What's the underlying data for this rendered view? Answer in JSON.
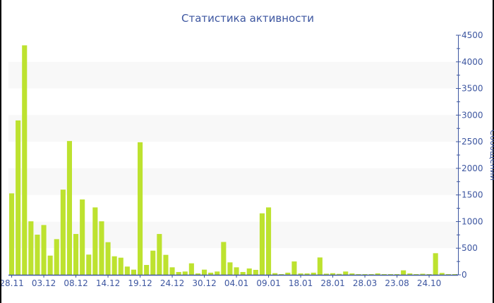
{
  "chart_data": {
    "type": "bar",
    "title": "Статистика активности",
    "ylabel": "Сообщений",
    "xlabel": "",
    "ylim": [
      0,
      4500
    ],
    "y_ticks": [
      0,
      500,
      1000,
      1500,
      2000,
      2500,
      3000,
      3500,
      4000,
      4500
    ],
    "y_axis_position": "right",
    "grid": "alternating horizontal bands every 500",
    "bar_color": "#bde22f",
    "band_color": "#f8f8f8",
    "text_color": "#3d56a0",
    "x_tick_labels": [
      "28.11",
      "03.12",
      "08.12",
      "14.12",
      "19.12",
      "24.12",
      "30.12",
      "04.01",
      "09.01",
      "18.01",
      "28.01",
      "28.03",
      "23.08",
      "24.10"
    ],
    "x_tick_every": 5,
    "values": [
      1530,
      2900,
      4310,
      1005,
      754,
      935,
      361,
      670,
      1600,
      2513,
      767,
      1415,
      380,
      1266,
      1005,
      613,
      348,
      322,
      155,
      97,
      2490,
      185,
      454,
      767,
      375,
      141,
      53,
      62,
      216,
      26,
      97,
      40,
      62,
      617,
      234,
      141,
      53,
      119,
      93,
      1155,
      1266,
      31,
      13,
      40,
      251,
      26,
      26,
      40,
      326,
      22,
      30,
      18,
      62,
      26,
      13,
      13,
      13,
      26,
      13,
      13,
      13,
      84,
      26,
      13,
      20,
      13,
      406,
      35,
      13,
      13
    ]
  }
}
